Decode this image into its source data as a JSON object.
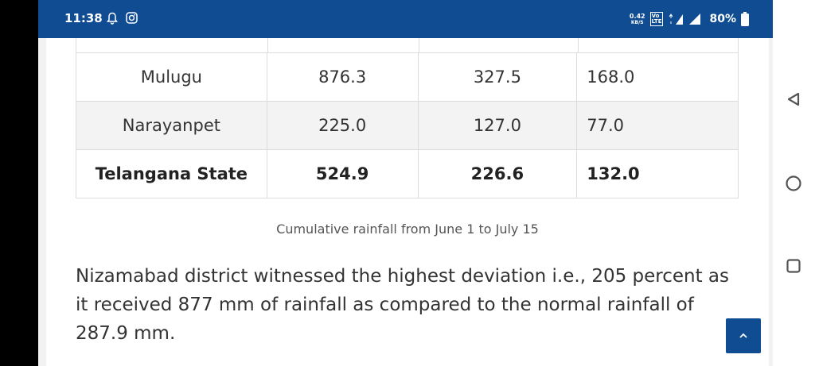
{
  "status_bar": {
    "time": "11:38",
    "net_speed_value": "0.42",
    "net_speed_unit": "KB/S",
    "volte_top": "Vo",
    "volte_bottom": "LTE",
    "network_type": "4G",
    "battery_percent": "80%",
    "colors": {
      "background": "#0f4c92",
      "foreground": "#ffffff"
    }
  },
  "rainfall_table": {
    "rows": [
      {
        "district": "Mulugu",
        "col2": "876.3",
        "col3": "327.5",
        "col4": "168.0",
        "highlight": false
      },
      {
        "district": "Narayanpet",
        "col2": "225.0",
        "col3": "127.0",
        "col4": "77.0",
        "highlight": true
      },
      {
        "district": "Telangana State",
        "col2": "524.9",
        "col3": "226.6",
        "col4": "132.0",
        "bold": true
      }
    ]
  },
  "caption": "Cumulative rainfall from June 1 to July 15",
  "paragraph": "Nizamabad district witnessed the highest deviation i.e., 205 percent as it received 877 mm of rainfall as compared to the normal rainfall of 287.9 mm.",
  "scroll_top_button": {
    "icon": "chevron-up-icon",
    "color": "#0f4c92"
  },
  "nav_bar": {
    "buttons": [
      {
        "name": "back",
        "icon": "triangle-back-icon"
      },
      {
        "name": "home",
        "icon": "circle-home-icon"
      },
      {
        "name": "recents",
        "icon": "square-recents-icon"
      }
    ]
  }
}
